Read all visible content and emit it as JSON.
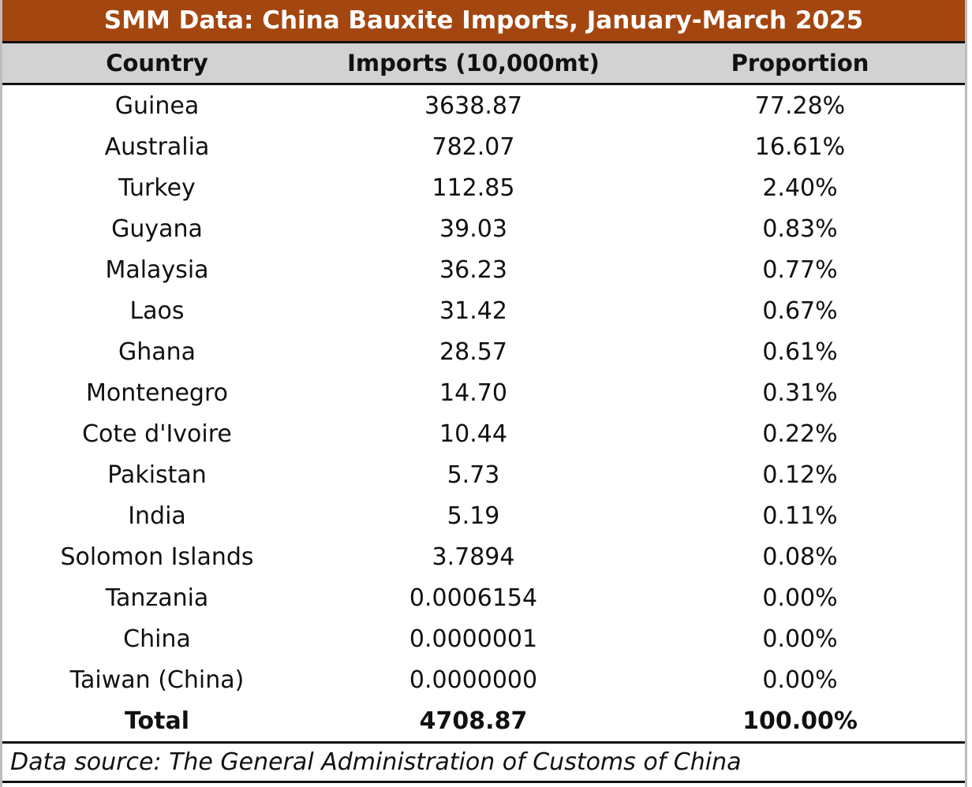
{
  "title": "SMM Data: China Bauxite Imports, January-March 2025",
  "headers": {
    "country": "Country",
    "imports": "Imports (10,000mt)",
    "proportion": "Proportion"
  },
  "rows": [
    {
      "country": "Guinea",
      "imports": "3638.87",
      "proportion": "77.28%"
    },
    {
      "country": "Australia",
      "imports": "782.07",
      "proportion": "16.61%"
    },
    {
      "country": "Turkey",
      "imports": "112.85",
      "proportion": "2.40%"
    },
    {
      "country": "Guyana",
      "imports": "39.03",
      "proportion": "0.83%"
    },
    {
      "country": "Malaysia",
      "imports": "36.23",
      "proportion": "0.77%"
    },
    {
      "country": "Laos",
      "imports": "31.42",
      "proportion": "0.67%"
    },
    {
      "country": "Ghana",
      "imports": "28.57",
      "proportion": "0.61%"
    },
    {
      "country": "Montenegro",
      "imports": "14.70",
      "proportion": "0.31%"
    },
    {
      "country": "Cote d'Ivoire",
      "imports": "10.44",
      "proportion": "0.22%"
    },
    {
      "country": "Pakistan",
      "imports": "5.73",
      "proportion": "0.12%"
    },
    {
      "country": "India",
      "imports": "5.19",
      "proportion": "0.11%"
    },
    {
      "country": "Solomon Islands",
      "imports": "3.7894",
      "proportion": "0.08%"
    },
    {
      "country": "Tanzania",
      "imports": "0.0006154",
      "proportion": "0.00%"
    },
    {
      "country": "China",
      "imports": "0.0000001",
      "proportion": "0.00%"
    },
    {
      "country": "Taiwan (China)",
      "imports": "0.0000000",
      "proportion": "0.00%"
    }
  ],
  "total": {
    "country": "Total",
    "imports": "4708.87",
    "proportion": "100.00%"
  },
  "footer": "Data source:  The General Administration of Customs of China"
}
